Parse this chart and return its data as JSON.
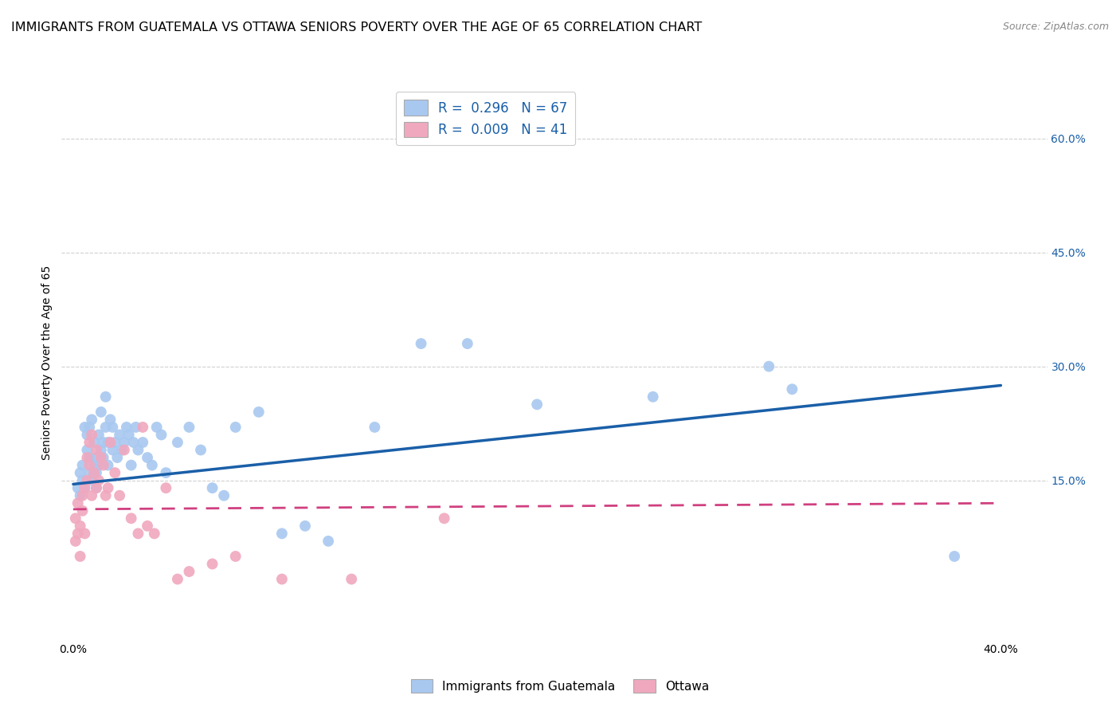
{
  "title": "IMMIGRANTS FROM GUATEMALA VS OTTAWA SENIORS POVERTY OVER THE AGE OF 65 CORRELATION CHART",
  "source": "Source: ZipAtlas.com",
  "ylabel": "Seniors Poverty Over the Age of 65",
  "blue_R": 0.296,
  "blue_N": 67,
  "pink_R": 0.009,
  "pink_N": 41,
  "blue_color": "#a8c8f0",
  "blue_line_color": "#1a5fa8",
  "pink_color": "#f0a8be",
  "pink_line_color": "#d04080",
  "legend1_label": "Immigrants from Guatemala",
  "legend2_label": "Ottawa",
  "background_color": "#ffffff",
  "grid_color": "#d0d0d0",
  "title_fontsize": 11.5,
  "source_fontsize": 9,
  "axis_label_fontsize": 10,
  "tick_fontsize": 10,
  "xlim": [
    -0.005,
    0.42
  ],
  "ylim": [
    -6,
    67
  ],
  "ytick_vals": [
    15,
    30,
    45,
    60
  ],
  "ytick_labels": [
    "15.0%",
    "30.0%",
    "45.0%",
    "60.0%"
  ],
  "xtick_vals": [
    0.0,
    0.4
  ],
  "xtick_labels": [
    "0.0%",
    "40.0%"
  ],
  "blue_line_x": [
    0.0,
    0.4
  ],
  "blue_line_y": [
    14.5,
    27.5
  ],
  "pink_line_x": [
    0.0,
    0.4
  ],
  "pink_line_y": [
    11.2,
    12.0
  ],
  "blue_scatter_x": [
    0.002,
    0.003,
    0.003,
    0.004,
    0.004,
    0.005,
    0.005,
    0.006,
    0.006,
    0.007,
    0.007,
    0.007,
    0.008,
    0.008,
    0.009,
    0.009,
    0.01,
    0.01,
    0.01,
    0.011,
    0.011,
    0.012,
    0.012,
    0.013,
    0.013,
    0.014,
    0.014,
    0.015,
    0.015,
    0.016,
    0.017,
    0.017,
    0.018,
    0.019,
    0.02,
    0.021,
    0.022,
    0.023,
    0.024,
    0.025,
    0.026,
    0.027,
    0.028,
    0.03,
    0.032,
    0.034,
    0.036,
    0.038,
    0.04,
    0.045,
    0.05,
    0.055,
    0.06,
    0.065,
    0.07,
    0.08,
    0.09,
    0.1,
    0.11,
    0.13,
    0.15,
    0.17,
    0.2,
    0.25,
    0.3,
    0.31,
    0.38
  ],
  "blue_scatter_y": [
    14,
    16,
    13,
    15,
    17,
    14,
    22,
    19,
    21,
    16,
    18,
    22,
    15,
    23,
    17,
    20,
    14,
    18,
    16,
    17,
    21,
    19,
    24,
    18,
    20,
    26,
    22,
    20,
    17,
    23,
    19,
    22,
    20,
    18,
    21,
    19,
    20,
    22,
    21,
    17,
    20,
    22,
    19,
    20,
    18,
    17,
    22,
    21,
    16,
    20,
    22,
    19,
    14,
    13,
    22,
    24,
    8,
    9,
    7,
    22,
    33,
    33,
    25,
    26,
    30,
    27,
    5
  ],
  "pink_scatter_x": [
    0.001,
    0.001,
    0.002,
    0.002,
    0.003,
    0.003,
    0.004,
    0.004,
    0.005,
    0.005,
    0.006,
    0.006,
    0.007,
    0.007,
    0.008,
    0.008,
    0.009,
    0.01,
    0.01,
    0.011,
    0.012,
    0.013,
    0.014,
    0.015,
    0.016,
    0.018,
    0.02,
    0.022,
    0.025,
    0.028,
    0.03,
    0.032,
    0.035,
    0.04,
    0.045,
    0.05,
    0.06,
    0.07,
    0.09,
    0.12,
    0.16
  ],
  "pink_scatter_y": [
    10,
    7,
    12,
    8,
    9,
    5,
    13,
    11,
    14,
    8,
    18,
    15,
    20,
    17,
    13,
    21,
    16,
    14,
    19,
    15,
    18,
    17,
    13,
    14,
    20,
    16,
    13,
    19,
    10,
    8,
    22,
    9,
    8,
    14,
    2,
    3,
    4,
    5,
    2,
    2,
    10
  ]
}
